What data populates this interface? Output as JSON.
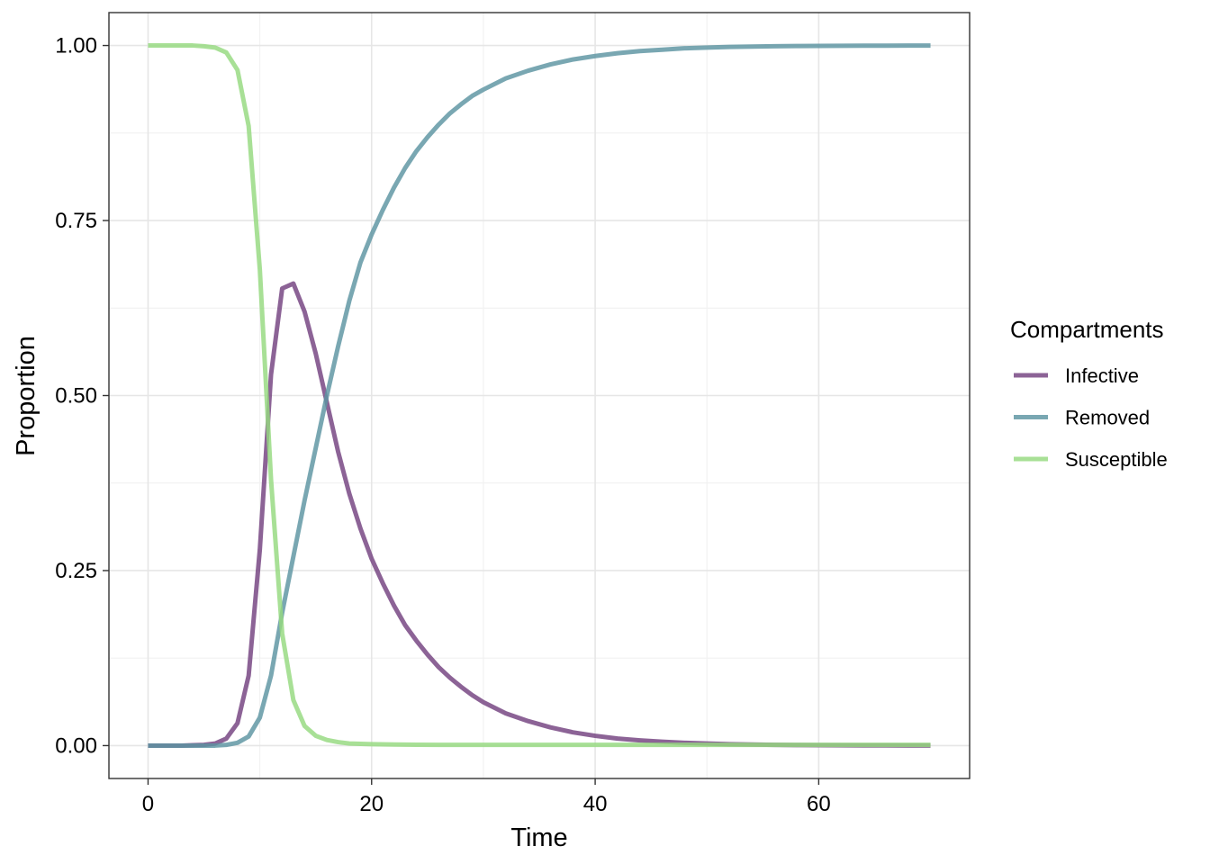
{
  "chart_data": {
    "type": "line",
    "xlabel": "Time",
    "ylabel": "Proportion",
    "xlim": [
      -3.5,
      73.5
    ],
    "ylim": [
      -0.047,
      1.047
    ],
    "xticks": [
      0,
      20,
      40,
      60
    ],
    "xtick_labels": [
      "0",
      "20",
      "40",
      "60"
    ],
    "yticks": [
      0,
      0.25,
      0.5,
      0.75,
      1
    ],
    "ytick_labels": [
      "0.00",
      "0.25",
      "0.50",
      "0.75",
      "1.00"
    ],
    "grid": true,
    "legend": {
      "title": "Compartments",
      "position": "right"
    },
    "series": [
      {
        "name": "Infective",
        "color": "#73417f",
        "x": [
          0,
          1,
          2,
          3,
          4,
          5,
          6,
          7,
          8,
          9,
          10,
          11,
          12,
          13,
          14,
          15,
          16,
          17,
          18,
          19,
          20,
          21,
          22,
          23,
          24,
          25,
          26,
          27,
          28,
          29,
          30,
          32,
          34,
          36,
          38,
          40,
          42,
          44,
          46,
          48,
          50,
          52,
          54,
          56,
          58,
          60,
          62,
          64,
          66,
          68,
          70
        ],
        "y": [
          0,
          0,
          0,
          0,
          0.0005,
          0.001,
          0.003,
          0.01,
          0.032,
          0.1,
          0.28,
          0.53,
          0.653,
          0.66,
          0.62,
          0.56,
          0.49,
          0.42,
          0.36,
          0.31,
          0.267,
          0.232,
          0.2,
          0.172,
          0.15,
          0.13,
          0.112,
          0.097,
          0.084,
          0.072,
          0.062,
          0.046,
          0.035,
          0.026,
          0.019,
          0.014,
          0.01,
          0.0075,
          0.0055,
          0.004,
          0.003,
          0.002,
          0.0015,
          0.001,
          0.0008,
          0.0006,
          0.0004,
          0.0003,
          0.0002,
          0.0001,
          0.0001
        ]
      },
      {
        "name": "Removed",
        "color": "#5c94a1",
        "x": [
          0,
          1,
          2,
          3,
          4,
          5,
          6,
          7,
          8,
          9,
          10,
          11,
          12,
          13,
          14,
          15,
          16,
          17,
          18,
          19,
          20,
          21,
          22,
          23,
          24,
          25,
          26,
          27,
          28,
          29,
          30,
          32,
          34,
          36,
          38,
          40,
          42,
          44,
          46,
          48,
          50,
          52,
          54,
          56,
          58,
          60,
          62,
          64,
          66,
          68,
          70
        ],
        "y": [
          0,
          0,
          0,
          0,
          0,
          0,
          0,
          0.001,
          0.004,
          0.013,
          0.04,
          0.1,
          0.19,
          0.27,
          0.35,
          0.425,
          0.5,
          0.57,
          0.635,
          0.69,
          0.73,
          0.765,
          0.797,
          0.825,
          0.849,
          0.869,
          0.887,
          0.903,
          0.916,
          0.928,
          0.937,
          0.953,
          0.964,
          0.973,
          0.98,
          0.985,
          0.989,
          0.992,
          0.994,
          0.996,
          0.997,
          0.998,
          0.9985,
          0.999,
          0.9993,
          0.9995,
          0.9996,
          0.9997,
          0.9998,
          0.9999,
          0.9999
        ]
      },
      {
        "name": "Susceptible",
        "color": "#95d97f",
        "x": [
          0,
          1,
          2,
          3,
          4,
          5,
          6,
          7,
          8,
          9,
          10,
          11,
          12,
          13,
          14,
          15,
          16,
          17,
          18,
          19,
          20,
          22,
          24,
          26,
          28,
          30,
          35,
          40,
          45,
          50,
          55,
          60,
          65,
          70
        ],
        "y": [
          1,
          1,
          1,
          1,
          1,
          0.999,
          0.997,
          0.99,
          0.965,
          0.885,
          0.68,
          0.38,
          0.16,
          0.065,
          0.028,
          0.014,
          0.008,
          0.005,
          0.003,
          0.0025,
          0.002,
          0.0015,
          0.0012,
          0.001,
          0.001,
          0.001,
          0.001,
          0.001,
          0.001,
          0.001,
          0.001,
          0.001,
          0.001,
          0.001
        ]
      }
    ]
  }
}
